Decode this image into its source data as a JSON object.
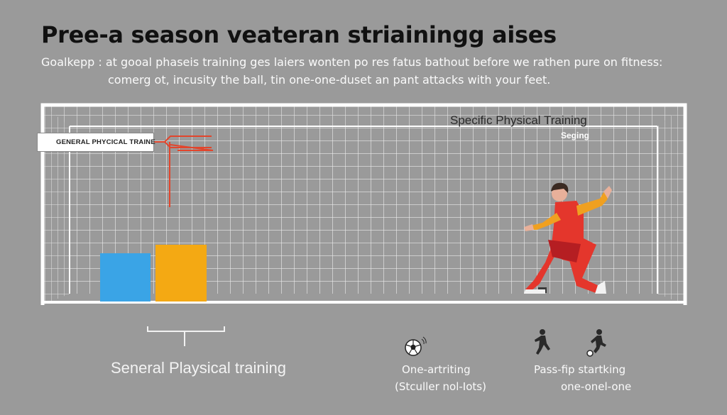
{
  "title": "Pree-a season veateran striainingg aises",
  "subtitle": {
    "line1": "Goalkepp : at gooal phaseis training ges laiers wonten po res fatus bathout before we rathen pure on fitness:",
    "line2": "comerg ot, incusity the ball, tin one-one-duset an pant attacks with your feet."
  },
  "left_label": "GENERAL PHYCICAL TRAINE",
  "specific": {
    "title": "Specific Physical Training",
    "subtitle": "Seging"
  },
  "bars": [
    {
      "color": "#3aa4e6"
    },
    {
      "color": "#f4a913"
    }
  ],
  "captions": {
    "general": "Seneral Playsical training",
    "one_line1": "One-artriting",
    "one_line2": "(Stculler nol-Iots)",
    "pass_line1": "Pass-fip startking",
    "pass_line2": "one-onel-one"
  },
  "icons": [
    "goal-net-icon",
    "goalkeeper-figure",
    "soccer-ball-icon",
    "player-run-icon",
    "player-kick-icon"
  ]
}
